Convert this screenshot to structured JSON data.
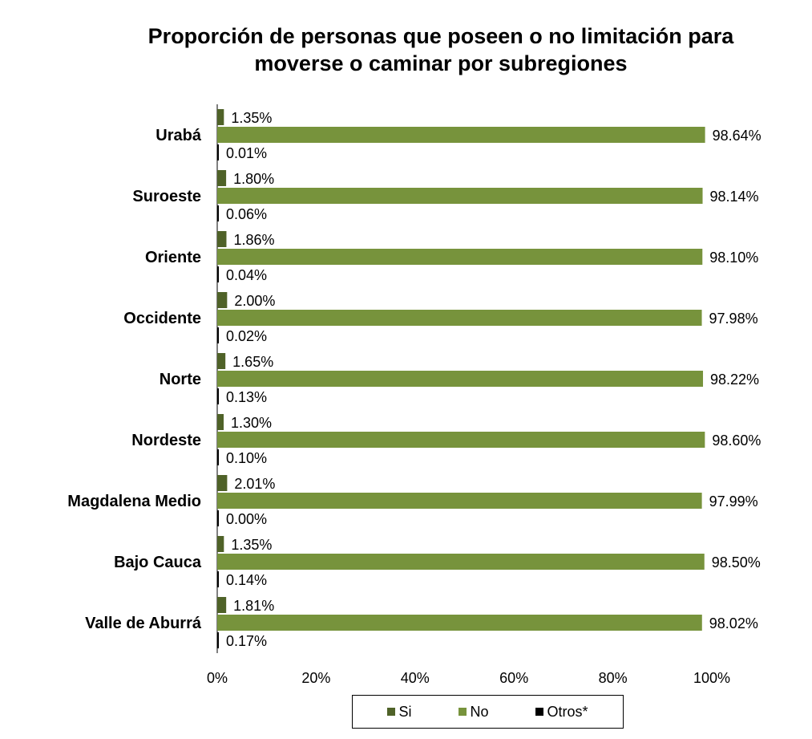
{
  "chart_data": {
    "type": "bar",
    "orientation": "horizontal",
    "title_lines": [
      "Proporción de personas que poseen o no limitación para",
      "moverse o caminar  por subregiones"
    ],
    "categories": [
      "Urabá",
      "Suroeste",
      "Oriente",
      "Occidente",
      "Norte",
      "Nordeste",
      "Magdalena Medio",
      "Bajo Cauca",
      "Valle de Aburrá"
    ],
    "series": [
      {
        "name": "Si",
        "color": "#4f6228",
        "values": [
          1.35,
          1.8,
          1.86,
          2.0,
          1.65,
          1.3,
          2.01,
          1.35,
          1.81
        ],
        "labels": [
          "1.35%",
          "1.80%",
          "1.86%",
          "2.00%",
          "1.65%",
          "1.30%",
          "2.01%",
          "1.35%",
          "1.81%"
        ]
      },
      {
        "name": "No",
        "color": "#77933c",
        "values": [
          98.64,
          98.14,
          98.1,
          97.98,
          98.22,
          98.6,
          97.99,
          98.5,
          98.02
        ],
        "labels": [
          "98.64%",
          "98.14%",
          "98.10%",
          "97.98%",
          "98.22%",
          "98.60%",
          "97.99%",
          "98.50%",
          "98.02%"
        ]
      },
      {
        "name": "Otros*",
        "color": "#000000",
        "values": [
          0.01,
          0.06,
          0.04,
          0.02,
          0.13,
          0.1,
          0.0,
          0.14,
          0.17
        ],
        "labels": [
          "0.01%",
          "0.06%",
          "0.04%",
          "0.02%",
          "0.13%",
          "0.10%",
          "0.00%",
          "0.14%",
          "0.17%"
        ]
      }
    ],
    "xlim": [
      0,
      100
    ],
    "x_ticks": [
      "0%",
      "20%",
      "40%",
      "60%",
      "80%",
      "100%"
    ],
    "grid": false,
    "legend_position": "bottom"
  }
}
